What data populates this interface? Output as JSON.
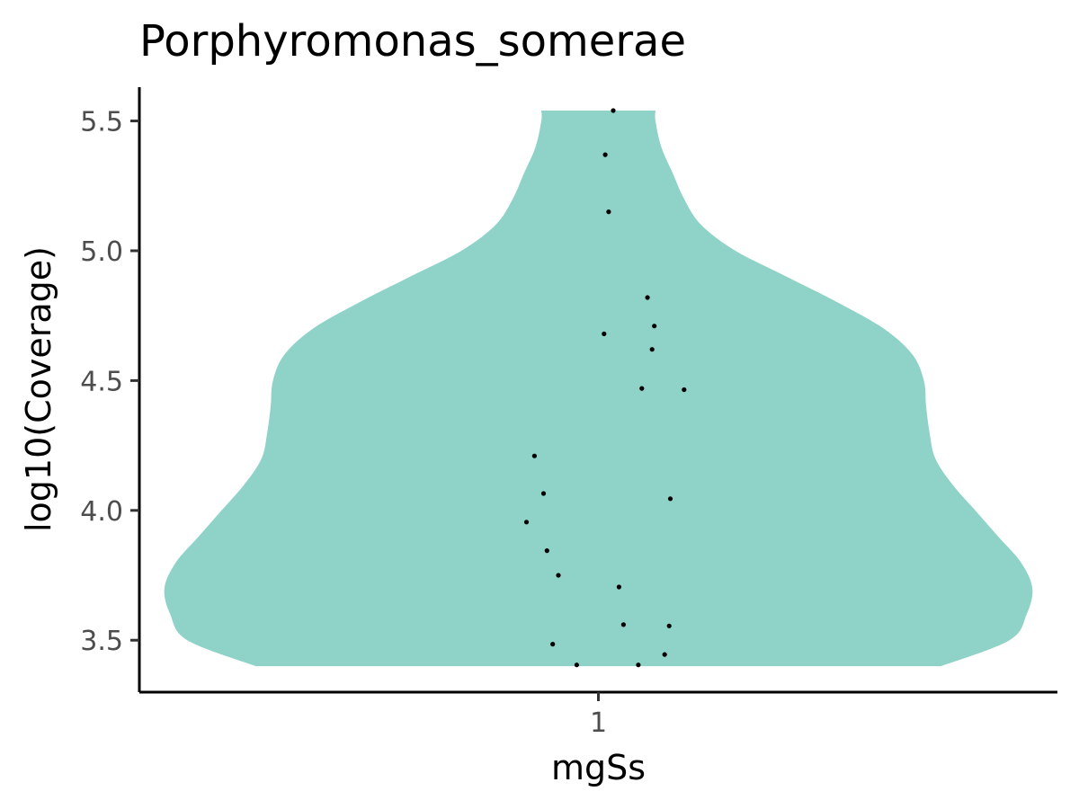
{
  "chart_data": {
    "type": "violin",
    "title": "Porphyromonas_somerae",
    "xlabel": "mgSs",
    "ylabel": "log10(Coverage)",
    "categories": [
      "1"
    ],
    "y_ticks": [
      "3.5",
      "4.0",
      "4.5",
      "5.0",
      "5.5"
    ],
    "ylim": [
      3.3,
      5.63
    ],
    "grid": false,
    "legend": "none",
    "fill_color": "#8fd3c8",
    "point_color": "#000000",
    "density_profile": [
      {
        "y": 3.4,
        "half_width": 0.3
      },
      {
        "y": 3.5,
        "half_width": 0.36
      },
      {
        "y": 3.6,
        "half_width": 0.375
      },
      {
        "y": 3.7,
        "half_width": 0.38
      },
      {
        "y": 3.8,
        "half_width": 0.37
      },
      {
        "y": 3.9,
        "half_width": 0.35
      },
      {
        "y": 4.0,
        "half_width": 0.33
      },
      {
        "y": 4.1,
        "half_width": 0.31
      },
      {
        "y": 4.2,
        "half_width": 0.295
      },
      {
        "y": 4.3,
        "half_width": 0.29
      },
      {
        "y": 4.4,
        "half_width": 0.287
      },
      {
        "y": 4.5,
        "half_width": 0.285
      },
      {
        "y": 4.6,
        "half_width": 0.275
      },
      {
        "y": 4.7,
        "half_width": 0.25
      },
      {
        "y": 4.8,
        "half_width": 0.21
      },
      {
        "y": 4.9,
        "half_width": 0.165
      },
      {
        "y": 5.0,
        "half_width": 0.12
      },
      {
        "y": 5.1,
        "half_width": 0.09
      },
      {
        "y": 5.2,
        "half_width": 0.075
      },
      {
        "y": 5.3,
        "half_width": 0.065
      },
      {
        "y": 5.4,
        "half_width": 0.055
      },
      {
        "y": 5.5,
        "half_width": 0.05
      },
      {
        "y": 5.54,
        "half_width": 0.05
      }
    ],
    "points": [
      {
        "x": 1.013,
        "y": 5.54
      },
      {
        "x": 1.006,
        "y": 5.37
      },
      {
        "x": 1.009,
        "y": 5.15
      },
      {
        "x": 1.043,
        "y": 4.82
      },
      {
        "x": 1.005,
        "y": 4.68
      },
      {
        "x": 1.049,
        "y": 4.71
      },
      {
        "x": 1.047,
        "y": 4.62
      },
      {
        "x": 1.038,
        "y": 4.47
      },
      {
        "x": 1.075,
        "y": 4.465
      },
      {
        "x": 0.944,
        "y": 4.21
      },
      {
        "x": 0.952,
        "y": 4.065
      },
      {
        "x": 0.937,
        "y": 3.955
      },
      {
        "x": 1.063,
        "y": 4.045
      },
      {
        "x": 0.955,
        "y": 3.845
      },
      {
        "x": 0.965,
        "y": 3.75
      },
      {
        "x": 1.018,
        "y": 3.705
      },
      {
        "x": 1.022,
        "y": 3.56
      },
      {
        "x": 1.062,
        "y": 3.555
      },
      {
        "x": 0.96,
        "y": 3.485
      },
      {
        "x": 0.981,
        "y": 3.405
      },
      {
        "x": 1.035,
        "y": 3.405
      },
      {
        "x": 1.058,
        "y": 3.445
      }
    ]
  }
}
